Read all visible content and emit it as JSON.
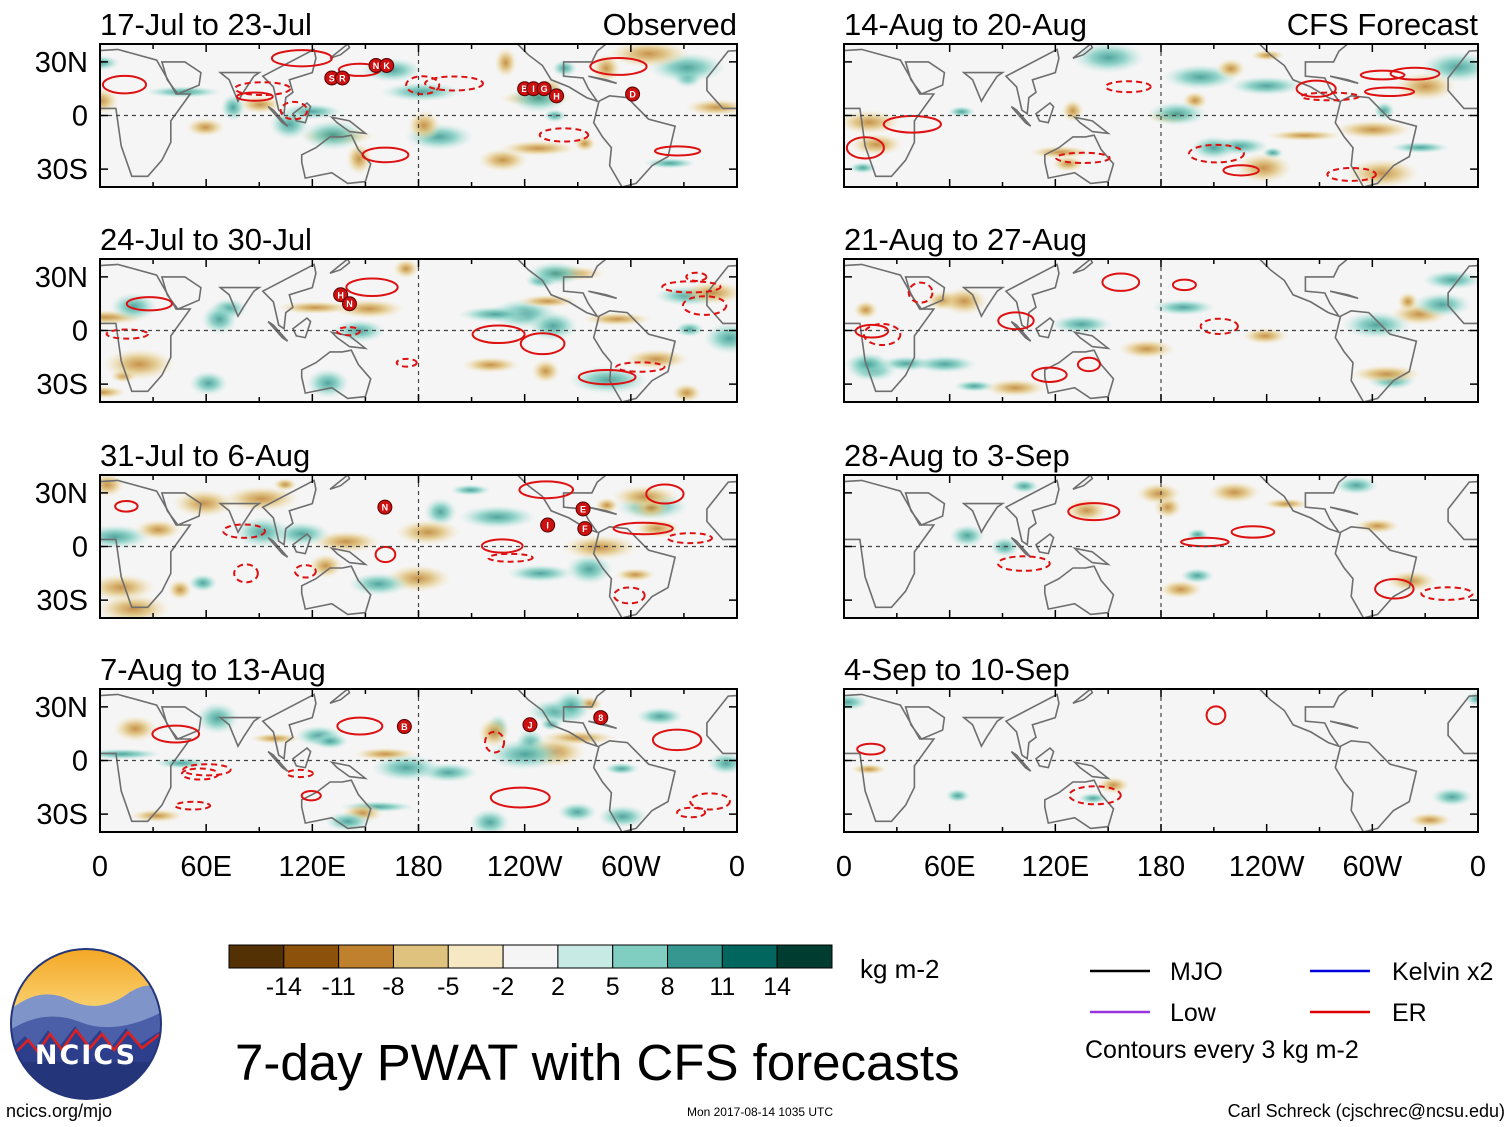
{
  "chart_data": {
    "type": "heatmap",
    "title": "7-day PWAT with CFS forecasts",
    "units": "kg m-2",
    "contour_note": "Contours every 3 kg m-2",
    "columns": [
      {
        "label": "Observed",
        "panels": [
          "17-Jul to 23-Jul",
          "24-Jul to 30-Jul",
          "31-Jul to 6-Aug",
          "7-Aug to 13-Aug"
        ]
      },
      {
        "label": "CFS Forecast",
        "panels": [
          "14-Aug to 20-Aug",
          "21-Aug to 27-Aug",
          "28-Aug to 3-Sep",
          "4-Sep to 10-Sep"
        ]
      }
    ],
    "x_ticks": [
      "0",
      "60E",
      "120E",
      "180",
      "120W",
      "60W",
      "0"
    ],
    "y_ticks": [
      "30N",
      "0",
      "30S"
    ],
    "colorbar": {
      "labels": [
        "-14",
        "-11",
        "-8",
        "-5",
        "-2",
        "2",
        "5",
        "8",
        "11",
        "14"
      ],
      "colors": [
        "#543005",
        "#8c510a",
        "#bf812d",
        "#dfc27d",
        "#f6e8c3",
        "#f5f5f5",
        "#c7eae5",
        "#80cdc1",
        "#35978f",
        "#01665e",
        "#003c30"
      ]
    },
    "legend": [
      {
        "label": "MJO",
        "color": "#000000"
      },
      {
        "label": "Kelvin x2",
        "color": "#0000dd"
      },
      {
        "label": "Low",
        "color": "#9933dd"
      },
      {
        "label": "ER",
        "color": "#dd0000"
      }
    ]
  },
  "footer": {
    "left": "ncics.org/mjo",
    "center": "Mon 2017-08-14 1035 UTC",
    "right": "Carl Schreck (cjschrec@ncsu.edu)"
  },
  "logo": {
    "text": "NCICS"
  }
}
